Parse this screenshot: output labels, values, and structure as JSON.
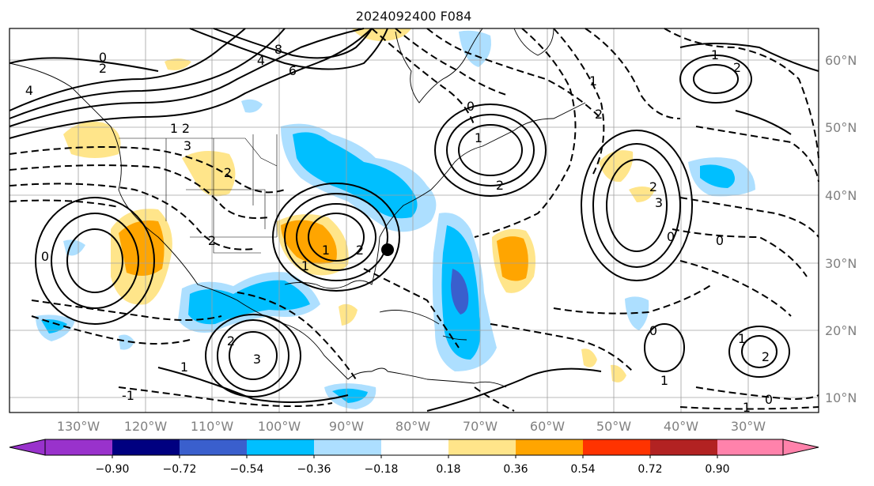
{
  "title": "2024092400 F084",
  "map": {
    "lon_labels": [
      "130°W",
      "120°W",
      "110°W",
      "100°W",
      "90°W",
      "80°W",
      "70°W",
      "60°W",
      "50°W",
      "40°W",
      "30°W"
    ],
    "lat_labels": [
      "60°N",
      "50°N",
      "40°N",
      "30°N",
      "20°N",
      "10°N"
    ],
    "storm_marker": "black-dot"
  },
  "colorbar": {
    "tick_labels": [
      "−0.90",
      "−0.72",
      "−0.54",
      "−0.36",
      "−0.18",
      "0.18",
      "0.36",
      "0.54",
      "0.72",
      "0.90"
    ],
    "colors": [
      "#9932CC",
      "#000080",
      "#3A5FCD",
      "#00BFFF",
      "#ADDFFF",
      "#FFFFFF",
      "#FFE58A",
      "#FFA500",
      "#FF3300",
      "#B22222",
      "#FF82AB"
    ]
  },
  "contour_labels": [
    "4",
    "2",
    "0",
    "1",
    "2",
    "3",
    "4",
    "6",
    "8",
    "2",
    "0",
    "-1",
    "2",
    "1",
    "2",
    "3",
    "1",
    "1",
    "2",
    "1",
    "0",
    "2",
    "1",
    "2",
    "3",
    "0",
    "2",
    "0",
    "1",
    "2",
    "1",
    "0",
    "1",
    "2",
    "1",
    "0"
  ]
}
